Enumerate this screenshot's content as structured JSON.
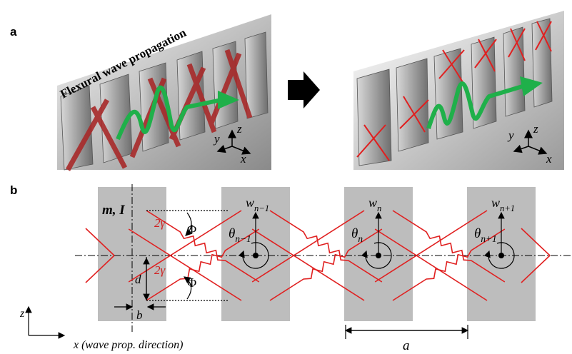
{
  "panel_a": {
    "label": "a",
    "title": "Flexural wave propagation",
    "left_axes": {
      "y": "y",
      "z": "z",
      "x": "x"
    },
    "right_axes": {
      "y": "y",
      "z": "z",
      "x": "x"
    }
  },
  "panel_b": {
    "label": "b",
    "mass": "m, I",
    "w": [
      {
        "symbol": "w",
        "subscript": "n−1"
      },
      {
        "symbol": "w",
        "subscript": "n"
      },
      {
        "symbol": "w",
        "subscript": "n+1"
      }
    ],
    "theta": [
      {
        "symbol": "θ",
        "subscript": "n−1"
      },
      {
        "symbol": "θ",
        "subscript": "n"
      },
      {
        "symbol": "θ",
        "subscript": "n+1"
      }
    ],
    "gamma_top": "2γ",
    "gamma_bottom": "2γ",
    "phi_top": "Φ",
    "phi_bottom": "Φ",
    "d": "d",
    "b": "b",
    "z": "z",
    "x_axis": "x (wave prop. direction)",
    "a": "a"
  }
}
